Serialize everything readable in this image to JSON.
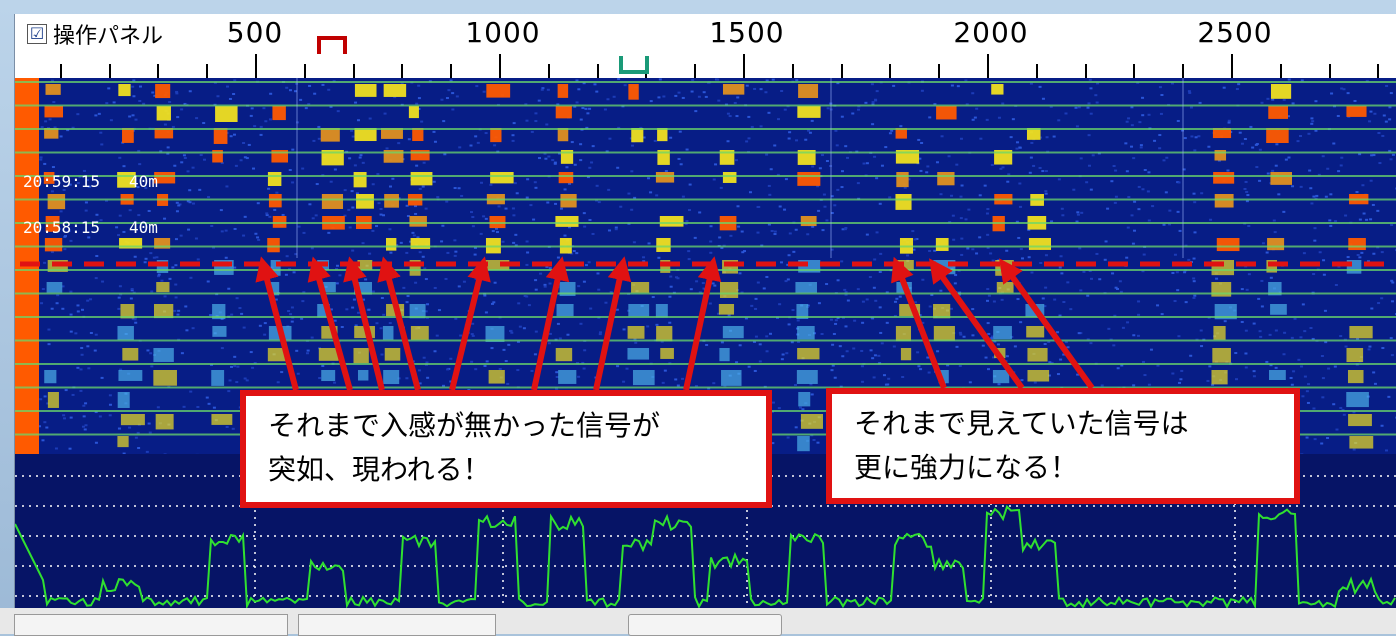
{
  "panel": {
    "checkbox_checked": "☑",
    "checkbox_label": "操作パネル"
  },
  "ruler": {
    "labels": [
      "500",
      "1000",
      "1500",
      "2000",
      "2500"
    ]
  },
  "waterfall": {
    "timestamps": [
      {
        "time": "20:59:15",
        "band": "40m"
      },
      {
        "time": "20:58:15",
        "band": "40m"
      }
    ]
  },
  "annotations": {
    "left_callout": {
      "line1": "それまで入感が無かった信号が",
      "line2": "突如、現われる！"
    },
    "right_callout": {
      "line1": "それまで見えていた信号は",
      "line2": "更に強力になる！"
    }
  },
  "colors": {
    "waterfall_bg": "#071d86",
    "signal_orange": "#ff5a00",
    "signal_yellow": "#f0e020",
    "annotation_red": "#e01212",
    "spectrum_green": "#30e030",
    "guide_green": "#6ad86a"
  }
}
